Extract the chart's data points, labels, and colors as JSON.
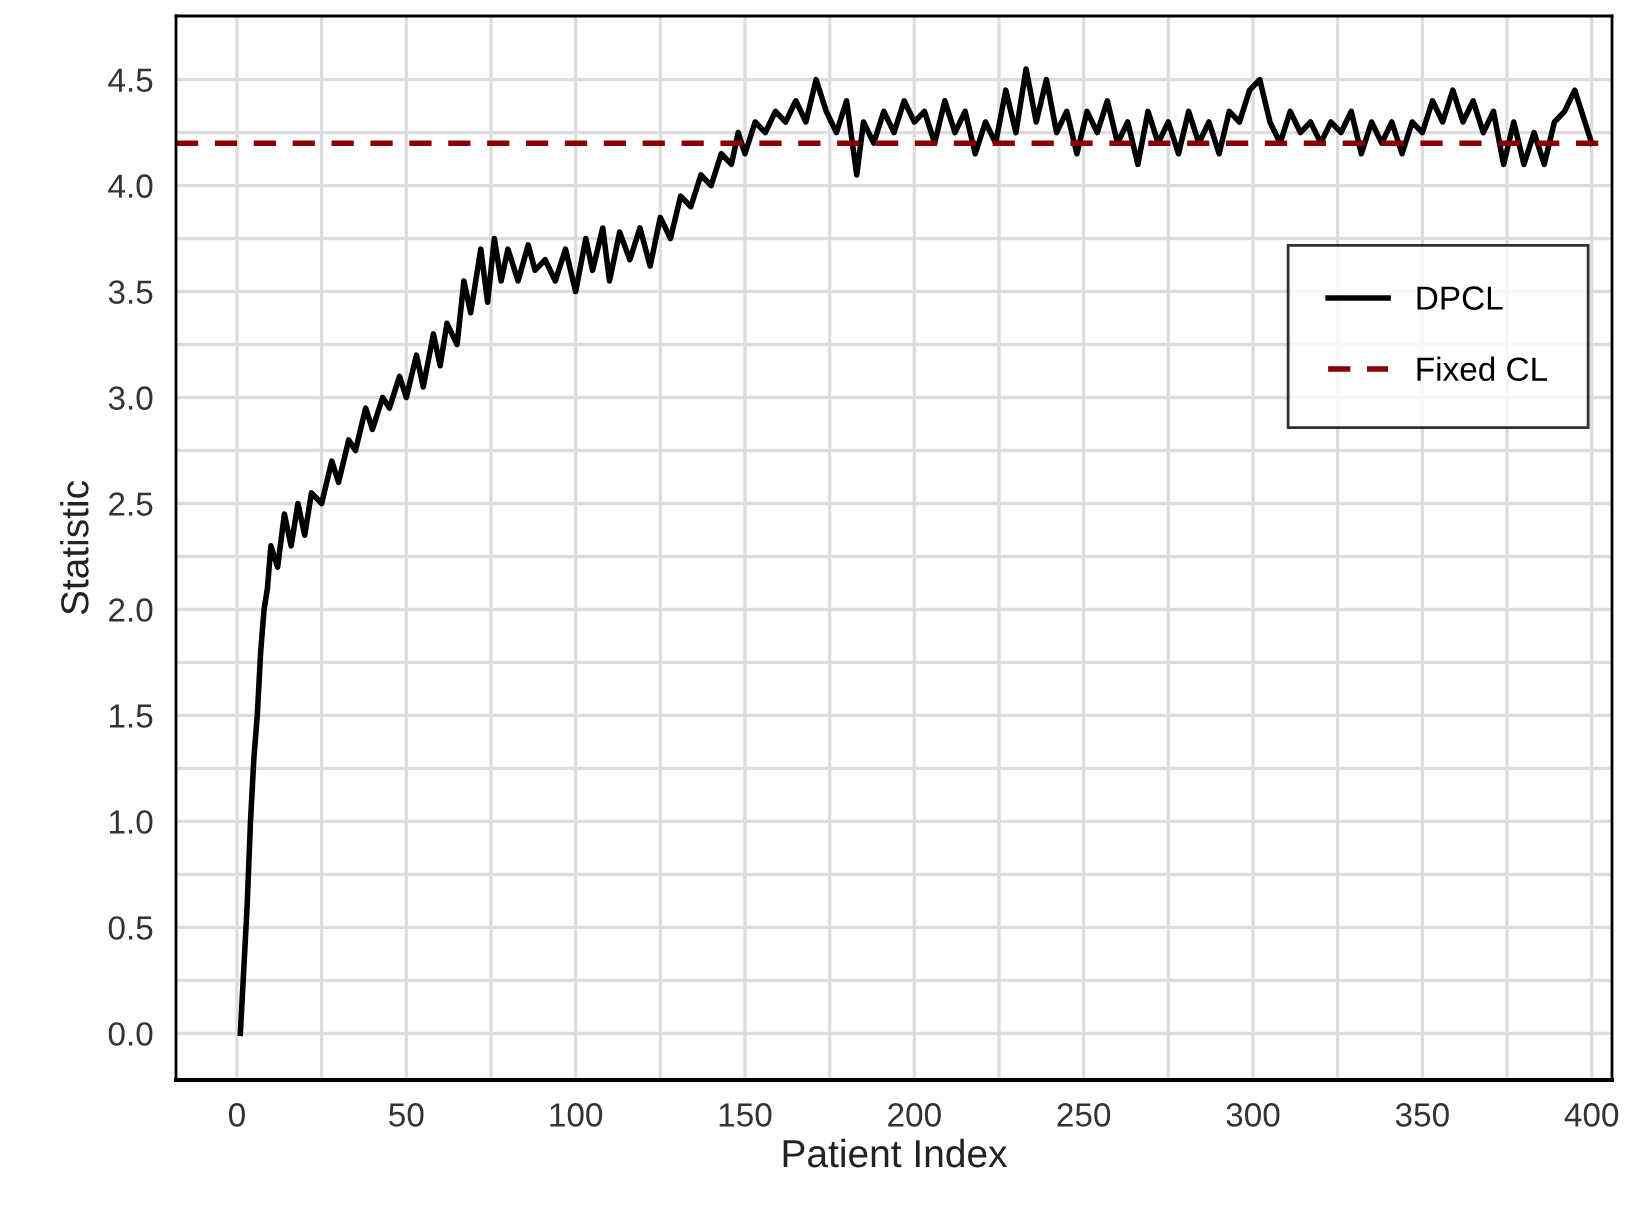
{
  "chart_data": {
    "type": "line",
    "xlabel": "Patient Index",
    "ylabel": "Statistic",
    "xlim": [
      -18,
      406
    ],
    "ylim": [
      -0.22,
      4.8
    ],
    "xticks": [
      0,
      {
        "value": 25,
        "label": null
      },
      50,
      {
        "value": 75,
        "label": null
      },
      100,
      {
        "value": 125,
        "label": null
      },
      150,
      {
        "value": 175,
        "label": null
      },
      200,
      {
        "value": 225,
        "label": null
      },
      250,
      {
        "value": 275,
        "label": null
      },
      300,
      {
        "value": 325,
        "label": null
      },
      350,
      {
        "value": 375,
        "label": null
      },
      400
    ],
    "yticks": [
      {
        "value": 0,
        "label": "0.0"
      },
      {
        "value": 0.25,
        "label": null
      },
      {
        "value": 0.5,
        "label": "0.5"
      },
      {
        "value": 0.75,
        "label": null
      },
      {
        "value": 1,
        "label": "1.0"
      },
      {
        "value": 1.25,
        "label": null
      },
      {
        "value": 1.5,
        "label": "1.5"
      },
      {
        "value": 1.75,
        "label": null
      },
      {
        "value": 2,
        "label": "2.0"
      },
      {
        "value": 2.25,
        "label": null
      },
      {
        "value": 2.5,
        "label": "2.5"
      },
      {
        "value": 2.75,
        "label": null
      },
      {
        "value": 3,
        "label": "3.0"
      },
      {
        "value": 3.25,
        "label": null
      },
      {
        "value": 3.5,
        "label": "3.5"
      },
      {
        "value": 3.75,
        "label": null
      },
      {
        "value": 4,
        "label": "4.0"
      },
      {
        "value": 4.25,
        "label": null
      },
      {
        "value": 4.5,
        "label": "4.5"
      }
    ],
    "grid": true,
    "legend": "right",
    "series": [
      {
        "name": "DPCL",
        "color": "#000000",
        "line_style": "solid",
        "x": [
          1,
          2,
          3,
          4,
          5,
          6,
          7,
          8,
          9,
          10,
          12,
          14,
          16,
          18,
          20,
          22,
          25,
          28,
          30,
          33,
          35,
          38,
          40,
          43,
          45,
          48,
          50,
          53,
          55,
          58,
          60,
          62,
          65,
          67,
          69,
          72,
          74,
          76,
          78,
          80,
          83,
          86,
          88,
          91,
          94,
          97,
          100,
          103,
          105,
          108,
          110,
          113,
          116,
          119,
          122,
          125,
          128,
          131,
          134,
          137,
          140,
          143,
          146,
          148,
          150,
          153,
          156,
          159,
          162,
          165,
          168,
          171,
          174,
          177,
          180,
          183,
          185,
          188,
          191,
          194,
          197,
          200,
          203,
          206,
          209,
          212,
          215,
          218,
          221,
          224,
          227,
          230,
          233,
          236,
          239,
          242,
          245,
          248,
          251,
          254,
          257,
          260,
          263,
          266,
          269,
          272,
          275,
          278,
          281,
          284,
          287,
          290,
          293,
          296,
          299,
          302,
          305,
          308,
          311,
          314,
          317,
          320,
          323,
          326,
          329,
          332,
          335,
          338,
          341,
          344,
          347,
          350,
          353,
          356,
          359,
          362,
          365,
          368,
          371,
          374,
          377,
          380,
          383,
          386,
          389,
          392,
          395,
          398,
          400
        ],
        "values": [
          0.0,
          0.3,
          0.6,
          1.0,
          1.3,
          1.5,
          1.8,
          2.0,
          2.1,
          2.3,
          2.2,
          2.45,
          2.3,
          2.5,
          2.35,
          2.55,
          2.5,
          2.7,
          2.6,
          2.8,
          2.75,
          2.95,
          2.85,
          3.0,
          2.95,
          3.1,
          3.0,
          3.2,
          3.05,
          3.3,
          3.15,
          3.35,
          3.25,
          3.55,
          3.4,
          3.7,
          3.45,
          3.75,
          3.55,
          3.7,
          3.55,
          3.72,
          3.6,
          3.65,
          3.55,
          3.7,
          3.5,
          3.75,
          3.6,
          3.8,
          3.55,
          3.78,
          3.65,
          3.8,
          3.62,
          3.85,
          3.75,
          3.95,
          3.9,
          4.05,
          4.0,
          4.15,
          4.1,
          4.25,
          4.15,
          4.3,
          4.25,
          4.35,
          4.3,
          4.4,
          4.3,
          4.5,
          4.35,
          4.25,
          4.4,
          4.05,
          4.3,
          4.2,
          4.35,
          4.25,
          4.4,
          4.3,
          4.35,
          4.2,
          4.4,
          4.25,
          4.35,
          4.15,
          4.3,
          4.2,
          4.45,
          4.25,
          4.55,
          4.3,
          4.5,
          4.25,
          4.35,
          4.15,
          4.35,
          4.25,
          4.4,
          4.2,
          4.3,
          4.1,
          4.35,
          4.2,
          4.3,
          4.15,
          4.35,
          4.2,
          4.3,
          4.15,
          4.35,
          4.3,
          4.45,
          4.5,
          4.3,
          4.2,
          4.35,
          4.25,
          4.3,
          4.2,
          4.3,
          4.25,
          4.35,
          4.15,
          4.3,
          4.2,
          4.3,
          4.15,
          4.3,
          4.25,
          4.4,
          4.3,
          4.45,
          4.3,
          4.4,
          4.25,
          4.35,
          4.1,
          4.3,
          4.1,
          4.25,
          4.1,
          4.3,
          4.35,
          4.45,
          4.3,
          4.2
        ]
      },
      {
        "name": "Fixed CL",
        "color": "#8b0000",
        "line_style": "dashed",
        "x": [
          -18,
          406
        ],
        "values": [
          4.2,
          4.2
        ]
      }
    ]
  }
}
